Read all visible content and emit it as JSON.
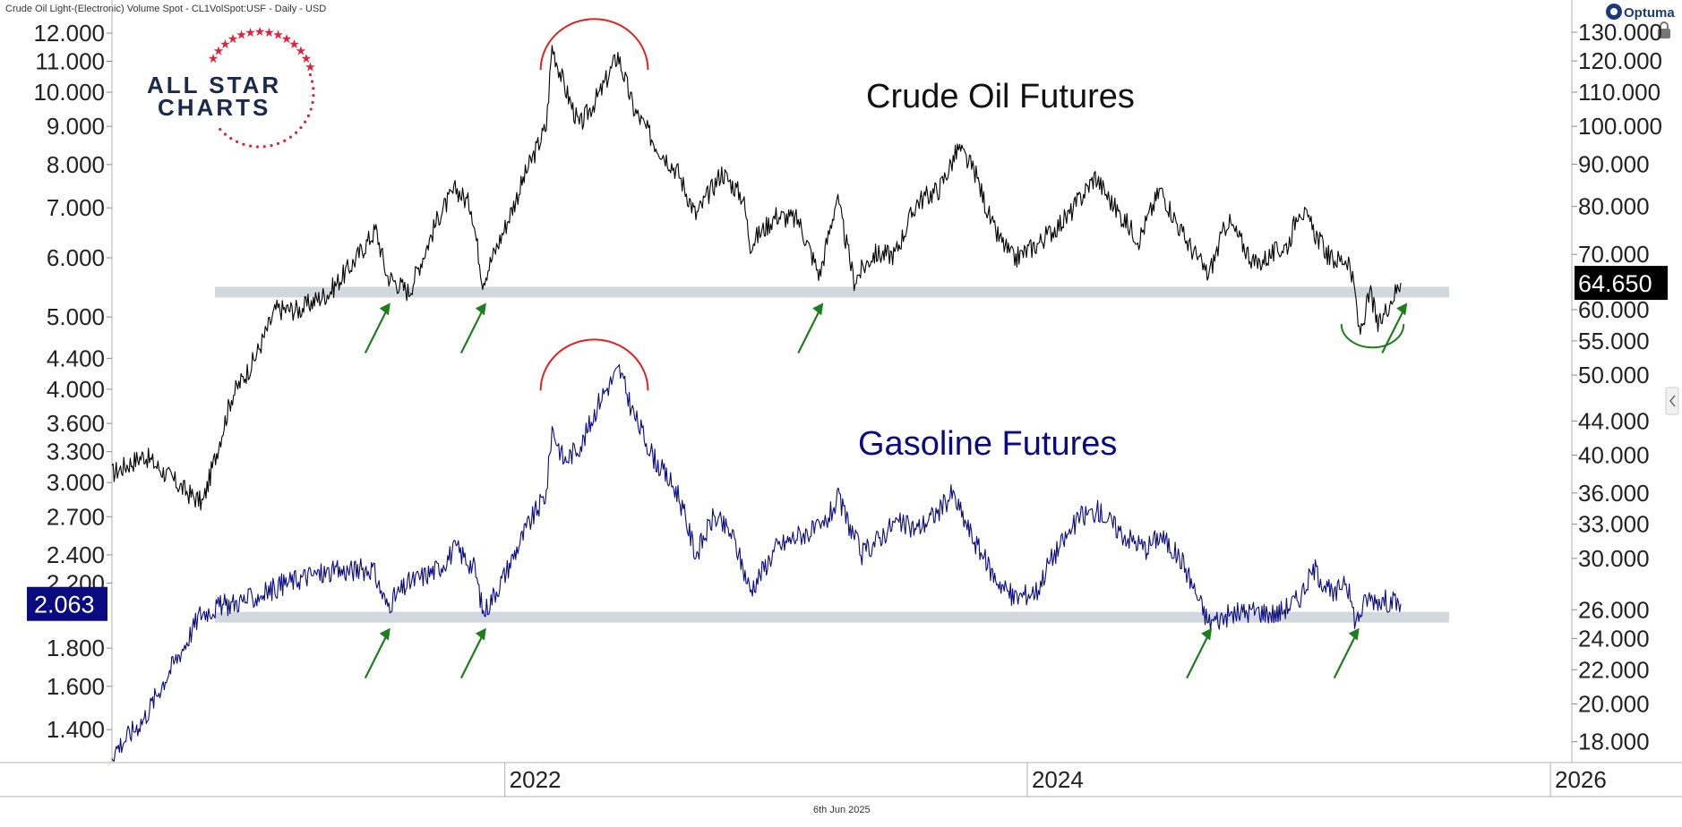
{
  "header": {
    "instrument": "Crude Oil Light-(Electronic) Volume Spot - CL1VolSpot:USF - Daily - USD",
    "brand": "Optuma"
  },
  "footer": {
    "date": "6th Jun 2025"
  },
  "logo": {
    "line1": "ALL STAR",
    "line2": "CHARTS"
  },
  "chart_data": {
    "type": "line",
    "xlim": [
      "2020-07-01",
      "2026-01-31"
    ],
    "x_ticks": [
      "2022",
      "2024",
      "2026"
    ],
    "left_axis": {
      "scale": "log",
      "ticks": [
        "12.000",
        "11.000",
        "10.000",
        "9.000",
        "8.000",
        "7.000",
        "6.000",
        "5.000",
        "4.400",
        "4.000",
        "3.600",
        "3.300",
        "3.000",
        "2.700",
        "2.400",
        "2.200",
        "1.800",
        "1.600",
        "1.400"
      ],
      "last_price": "2.063"
    },
    "right_axis": {
      "scale": "log",
      "ticks": [
        "130.000",
        "120.000",
        "110.000",
        "100.000",
        "90.000",
        "80.000",
        "70.000",
        "60.000",
        "55.000",
        "50.000",
        "44.000",
        "40.000",
        "36.000",
        "33.000",
        "30.000",
        "26.000",
        "24.000",
        "22.000",
        "20.000",
        "18.000"
      ],
      "last_price": "64.650"
    },
    "series": [
      {
        "name": "Crude Oil Futures",
        "axis": "right",
        "color": "#000000",
        "points": [
          [
            "2020-07-01",
            38
          ],
          [
            "2020-08-15",
            40
          ],
          [
            "2020-10-15",
            36
          ],
          [
            "2020-11-05",
            35
          ],
          [
            "2020-12-15",
            47
          ],
          [
            "2021-01-15",
            52
          ],
          [
            "2021-02-15",
            60
          ],
          [
            "2021-03-20",
            60
          ],
          [
            "2021-05-01",
            63
          ],
          [
            "2021-06-01",
            68
          ],
          [
            "2021-07-05",
            75
          ],
          [
            "2021-07-20",
            66
          ],
          [
            "2021-08-20",
            63
          ],
          [
            "2021-10-01",
            78
          ],
          [
            "2021-10-25",
            84
          ],
          [
            "2021-11-15",
            80
          ],
          [
            "2021-12-01",
            65
          ],
          [
            "2021-12-31",
            75
          ],
          [
            "2022-01-31",
            88
          ],
          [
            "2022-02-28",
            100
          ],
          [
            "2022-03-08",
            125
          ],
          [
            "2022-03-25",
            112
          ],
          [
            "2022-04-15",
            100
          ],
          [
            "2022-05-15",
            110
          ],
          [
            "2022-06-08",
            122
          ],
          [
            "2022-06-30",
            105
          ],
          [
            "2022-07-31",
            95
          ],
          [
            "2022-08-31",
            88
          ],
          [
            "2022-09-25",
            78
          ],
          [
            "2022-10-31",
            88
          ],
          [
            "2022-11-30",
            82
          ],
          [
            "2022-12-10",
            72
          ],
          [
            "2023-01-15",
            78
          ],
          [
            "2023-02-15",
            77
          ],
          [
            "2023-03-17",
            66
          ],
          [
            "2023-04-10",
            82
          ],
          [
            "2023-05-04",
            65
          ],
          [
            "2023-05-31",
            70
          ],
          [
            "2023-06-30",
            70
          ],
          [
            "2023-07-31",
            81
          ],
          [
            "2023-08-31",
            84
          ],
          [
            "2023-09-27",
            94
          ],
          [
            "2023-10-20",
            88
          ],
          [
            "2023-11-15",
            75
          ],
          [
            "2023-12-13",
            69
          ],
          [
            "2024-01-15",
            72
          ],
          [
            "2024-02-28",
            78
          ],
          [
            "2024-04-05",
            87
          ],
          [
            "2024-05-01",
            80
          ],
          [
            "2024-06-05",
            73
          ],
          [
            "2024-07-05",
            84
          ],
          [
            "2024-08-05",
            74
          ],
          [
            "2024-09-10",
            66
          ],
          [
            "2024-10-07",
            77
          ],
          [
            "2024-11-15",
            68
          ],
          [
            "2024-12-31",
            72
          ],
          [
            "2025-01-15",
            80
          ],
          [
            "2025-02-28",
            69
          ],
          [
            "2025-03-25",
            69
          ],
          [
            "2025-04-04",
            62
          ],
          [
            "2025-04-09",
            56
          ],
          [
            "2025-04-25",
            63
          ],
          [
            "2025-05-05",
            57
          ],
          [
            "2025-05-20",
            61
          ],
          [
            "2025-06-06",
            64.65
          ]
        ]
      },
      {
        "name": "Gasoline Futures",
        "axis": "left",
        "color": "#0b0b80",
        "points": [
          [
            "2020-07-01",
            1.3
          ],
          [
            "2020-08-15",
            1.45
          ],
          [
            "2020-09-15",
            1.65
          ],
          [
            "2020-10-15",
            1.85
          ],
          [
            "2020-11-01",
            2.0
          ],
          [
            "2020-12-01",
            2.05
          ],
          [
            "2021-01-15",
            2.1
          ],
          [
            "2021-03-01",
            2.2
          ],
          [
            "2021-04-01",
            2.25
          ],
          [
            "2021-05-15",
            2.28
          ],
          [
            "2021-06-30",
            2.3
          ],
          [
            "2021-07-20",
            2.05
          ],
          [
            "2021-08-20",
            2.2
          ],
          [
            "2021-09-30",
            2.3
          ],
          [
            "2021-10-25",
            2.45
          ],
          [
            "2021-11-20",
            2.3
          ],
          [
            "2021-12-02",
            2.0
          ],
          [
            "2021-12-31",
            2.25
          ],
          [
            "2022-01-31",
            2.6
          ],
          [
            "2022-02-28",
            2.9
          ],
          [
            "2022-03-08",
            3.55
          ],
          [
            "2022-03-25",
            3.2
          ],
          [
            "2022-04-20",
            3.4
          ],
          [
            "2022-05-15",
            3.9
          ],
          [
            "2022-06-10",
            4.25
          ],
          [
            "2022-06-30",
            3.7
          ],
          [
            "2022-07-31",
            3.2
          ],
          [
            "2022-08-31",
            2.9
          ],
          [
            "2022-09-25",
            2.4
          ],
          [
            "2022-10-20",
            2.7
          ],
          [
            "2022-11-15",
            2.55
          ],
          [
            "2022-12-10",
            2.15
          ],
          [
            "2023-01-15",
            2.45
          ],
          [
            "2023-02-15",
            2.55
          ],
          [
            "2023-03-20",
            2.6
          ],
          [
            "2023-04-12",
            2.85
          ],
          [
            "2023-05-15",
            2.4
          ],
          [
            "2023-06-30",
            2.65
          ],
          [
            "2023-07-31",
            2.6
          ],
          [
            "2023-08-31",
            2.75
          ],
          [
            "2023-09-18",
            2.9
          ],
          [
            "2023-10-15",
            2.55
          ],
          [
            "2023-11-15",
            2.25
          ],
          [
            "2023-12-13",
            2.1
          ],
          [
            "2024-01-15",
            2.15
          ],
          [
            "2024-02-01",
            2.35
          ],
          [
            "2024-03-15",
            2.7
          ],
          [
            "2024-04-10",
            2.75
          ],
          [
            "2024-05-15",
            2.55
          ],
          [
            "2024-06-15",
            2.45
          ],
          [
            "2024-07-05",
            2.55
          ],
          [
            "2024-08-05",
            2.35
          ],
          [
            "2024-09-10",
            1.95
          ],
          [
            "2024-10-15",
            2.0
          ],
          [
            "2024-11-15",
            2.02
          ],
          [
            "2024-12-15",
            2.0
          ],
          [
            "2025-01-15",
            2.1
          ],
          [
            "2025-02-05",
            2.3
          ],
          [
            "2025-03-05",
            2.1
          ],
          [
            "2025-03-20",
            2.25
          ],
          [
            "2025-04-04",
            1.95
          ],
          [
            "2025-04-20",
            2.1
          ],
          [
            "2025-05-20",
            2.08
          ],
          [
            "2025-06-06",
            2.063
          ]
        ]
      }
    ],
    "support_levels": [
      {
        "series": "Crude Oil Futures",
        "value": 63
      },
      {
        "series": "Gasoline Futures",
        "value": 1.98
      }
    ],
    "annotations": [
      {
        "type": "arc-top",
        "series": "Crude Oil Futures",
        "from": "2022-02-20",
        "to": "2022-07-20",
        "level": 128,
        "color": "#e0221e"
      },
      {
        "type": "arc-top",
        "series": "Gasoline Futures",
        "from": "2022-02-20",
        "to": "2022-07-20",
        "level": 4.4,
        "color": "#e0221e"
      },
      {
        "type": "arc-bottom",
        "series": "Crude Oil Futures",
        "from": "2025-03-15",
        "to": "2025-06-10",
        "level": 54,
        "color": "#1e7d1e"
      },
      {
        "type": "arrow",
        "series": "Crude Oil Futures",
        "at": "2021-07-20",
        "color": "#1e7d1e"
      },
      {
        "type": "arrow",
        "series": "Crude Oil Futures",
        "at": "2021-12-01",
        "color": "#1e7d1e"
      },
      {
        "type": "arrow",
        "series": "Crude Oil Futures",
        "at": "2023-03-17",
        "color": "#1e7d1e"
      },
      {
        "type": "arrow",
        "series": "Crude Oil Futures",
        "at": "2025-06-10",
        "color": "#1e7d1e"
      },
      {
        "type": "arrow",
        "series": "Gasoline Futures",
        "at": "2021-07-20",
        "color": "#1e7d1e"
      },
      {
        "type": "arrow",
        "series": "Gasoline Futures",
        "at": "2021-12-01",
        "color": "#1e7d1e"
      },
      {
        "type": "arrow",
        "series": "Gasoline Futures",
        "at": "2024-09-10",
        "color": "#1e7d1e"
      },
      {
        "type": "arrow",
        "series": "Gasoline Futures",
        "at": "2025-04-04",
        "color": "#1e7d1e"
      }
    ],
    "colors": {
      "support_band": "#d3d8de",
      "price_box_right": "#000000",
      "price_box_left": "#0b0b80"
    }
  }
}
